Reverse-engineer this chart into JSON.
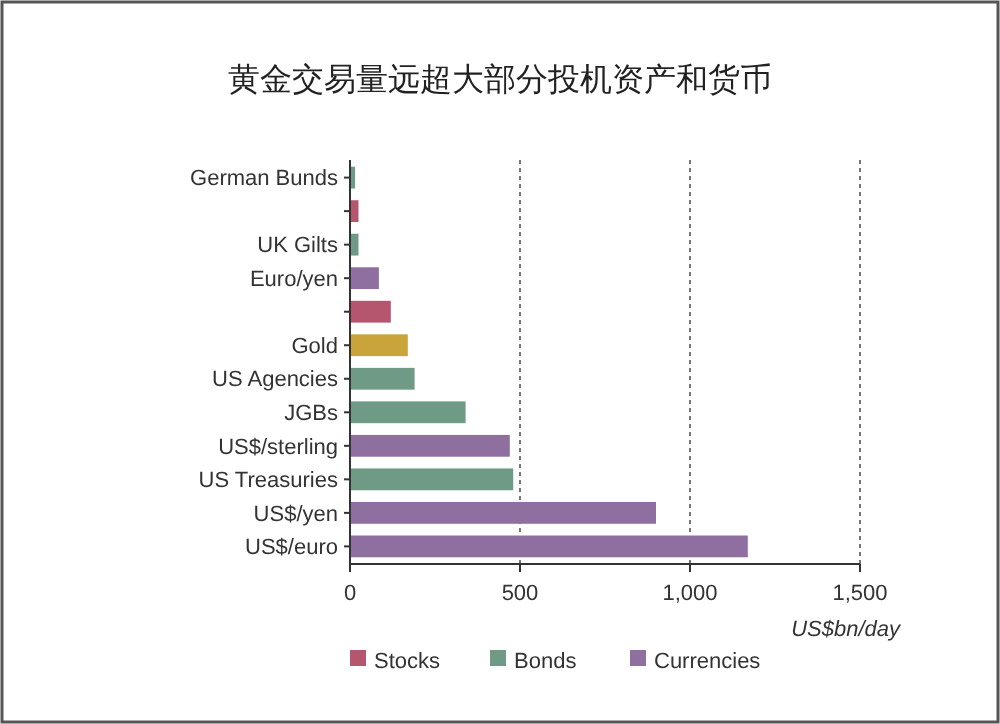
{
  "chart_data": {
    "type": "bar",
    "orientation": "horizontal",
    "title": "黄金交易量远超大部分投机资产和货币",
    "xlabel": "US$bn/day",
    "categories": [
      "German Bunds",
      null,
      "UK Gilts",
      "Euro/yen",
      null,
      "Gold",
      "US Agencies",
      "JGBs",
      "US$/sterling",
      "US Treasuries",
      "US$/yen",
      "US$/euro"
    ],
    "series": [
      {
        "name": "Stocks",
        "color": "#b5566e",
        "values": [
          null,
          25,
          null,
          null,
          120,
          null,
          null,
          null,
          null,
          null,
          null,
          null
        ]
      },
      {
        "name": "Bonds",
        "color": "#6f9a86",
        "values": [
          15,
          null,
          25,
          null,
          null,
          null,
          190,
          340,
          null,
          480,
          null,
          null
        ]
      },
      {
        "name": "Currencies",
        "color": "#8e6fa0",
        "values": [
          null,
          null,
          null,
          85,
          null,
          null,
          null,
          null,
          470,
          null,
          900,
          1170
        ]
      },
      {
        "color": "#c9a43a",
        "values": [
          null,
          null,
          null,
          null,
          null,
          170,
          null,
          null,
          null,
          null,
          null,
          null
        ]
      }
    ],
    "xlim": [
      0,
      1500
    ],
    "xticks": [
      0,
      500,
      {
        "value": 1000,
        "label": "1,000"
      },
      {
        "value": 1500,
        "label": "1,500"
      }
    ],
    "grid": "x",
    "legend": "bottom"
  }
}
